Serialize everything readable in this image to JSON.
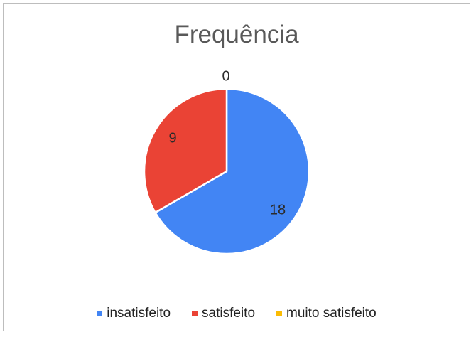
{
  "chart_data": {
    "type": "pie",
    "title": "Frequência",
    "categories": [
      "insatisfeito",
      "satisfeito",
      "muito satisfeito"
    ],
    "values": [
      18,
      9,
      0
    ],
    "colors": [
      "#4285f4",
      "#ea4335",
      "#fbbc04"
    ],
    "data_labels": [
      "18",
      "9",
      "0"
    ],
    "legend_position": "bottom"
  }
}
